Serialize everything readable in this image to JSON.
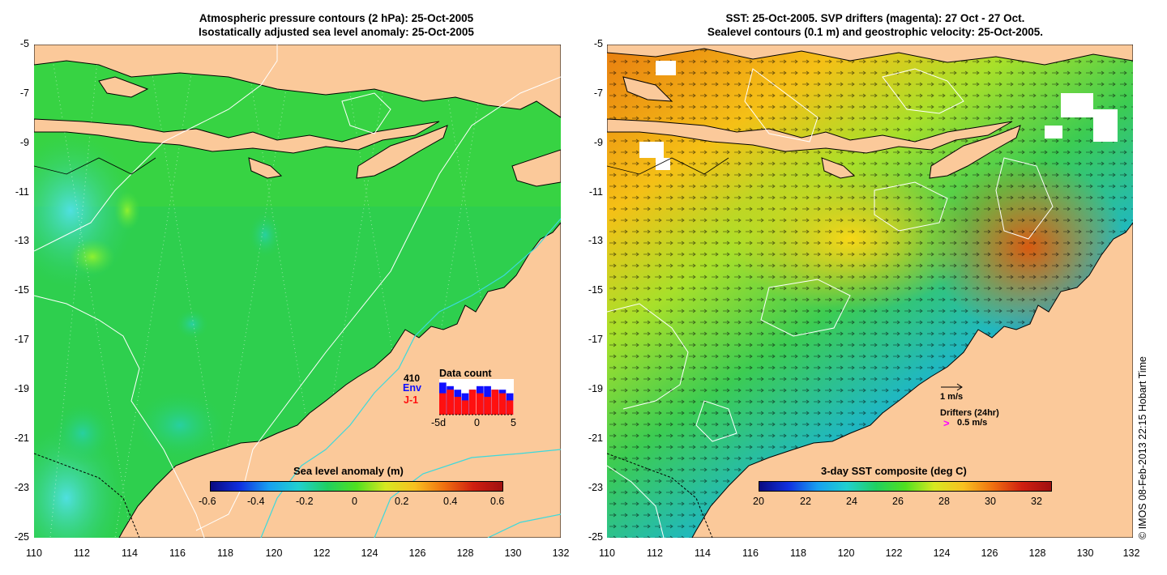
{
  "left_panel": {
    "title_line1": "Atmospheric pressure contours (2 hPa): 25-Oct-2005",
    "title_line2": "Isostatically adjusted sea level anomaly: 25-Oct-2005",
    "x_ticks": [
      "110",
      "112",
      "114",
      "116",
      "118",
      "120",
      "122",
      "124",
      "126",
      "128",
      "130",
      "132"
    ],
    "y_ticks": [
      "-5",
      "-7",
      "-9",
      "-11",
      "-13",
      "-15",
      "-17",
      "-19",
      "-21",
      "-23",
      "-25"
    ],
    "colorbar": {
      "title": "Sea level anomaly (m)",
      "ticks": [
        "-0.6",
        "-0.4",
        "-0.2",
        "0",
        "0.2",
        "0.4",
        "0.6"
      ],
      "range": [
        -0.6,
        0.6
      ]
    },
    "data_count": {
      "title": "Data count",
      "total": "410",
      "series": [
        {
          "name": "Env",
          "color": "#1010ff",
          "values": [
            9,
            8,
            7,
            6,
            7,
            8,
            8,
            7,
            7,
            6
          ]
        },
        {
          "name": "J-1",
          "color": "#ff1010",
          "values": [
            6,
            7,
            5,
            4,
            7,
            6,
            5,
            7,
            6,
            4
          ]
        }
      ],
      "x_labels": [
        "-5d",
        "0",
        "5"
      ]
    }
  },
  "right_panel": {
    "title_line1": "SST: 25-Oct-2005. SVP drifters (magenta): 27 Oct - 27 Oct.",
    "title_line2": "Sealevel contours (0.1 m) and geostrophic velocity: 25-Oct-2005.",
    "x_ticks": [
      "110",
      "112",
      "114",
      "116",
      "118",
      "120",
      "122",
      "124",
      "126",
      "128",
      "130",
      "132"
    ],
    "y_ticks": [
      "-5",
      "-7",
      "-9",
      "-11",
      "-13",
      "-15",
      "-17",
      "-19",
      "-21",
      "-23",
      "-25"
    ],
    "colorbar": {
      "title": "3-day SST composite (deg C)",
      "ticks": [
        "20",
        "22",
        "24",
        "26",
        "28",
        "30",
        "32"
      ],
      "range": [
        20,
        32.6
      ]
    },
    "legend": {
      "velocity_scale": "1 m/s",
      "drifters_label": "Drifters (24hr)",
      "drifter_symbol": ">",
      "drifter_speed": "0.5 m/s"
    }
  },
  "credit": "© IMOS 08-Feb-2013 22:15 Hobart Time",
  "colors": {
    "land": "#fbc99a",
    "sla_ocean": "#2bd04a",
    "sla_low": "#22d9c8",
    "coast": "#000000",
    "bathy": "#3cd9dc",
    "drifter": "#ff00ff"
  }
}
